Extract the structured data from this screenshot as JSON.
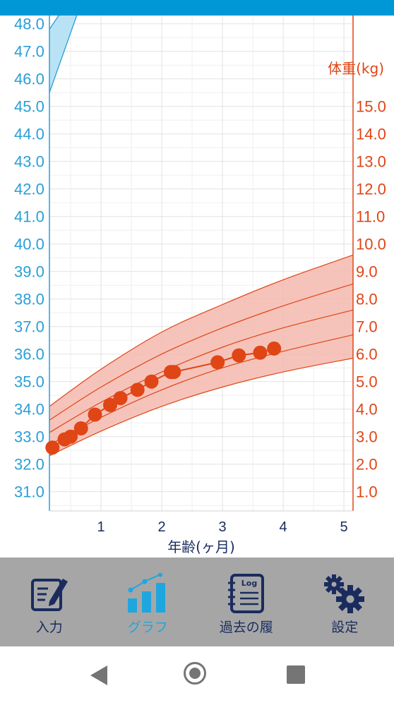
{
  "chart_data": {
    "type": "line",
    "left_axis": {
      "ticks": [
        "31.0",
        "32.0",
        "33.0",
        "34.0",
        "35.0",
        "36.0",
        "37.0",
        "38.0",
        "39.0",
        "40.0",
        "41.0",
        "42.0",
        "43.0",
        "44.0",
        "45.0",
        "46.0",
        "47.0",
        "48.0"
      ],
      "range": [
        30.3,
        48.3
      ],
      "color": "#2a9fd6"
    },
    "right_axis": {
      "label": "体重(kg)",
      "ticks": [
        "1.0",
        "2.0",
        "3.0",
        "4.0",
        "5.0",
        "6.0",
        "7.0",
        "8.0",
        "9.0",
        "10.0",
        "11.0",
        "12.0",
        "13.0",
        "14.0",
        "15.0"
      ],
      "range": [
        0.3,
        18.3
      ],
      "color": "#e04515"
    },
    "x_axis": {
      "label": "年齢(ヶ月)",
      "ticks": [
        "1",
        "2",
        "3",
        "4",
        "5"
      ],
      "range": [
        0.15,
        5.15
      ],
      "color": "#1a2c5e"
    },
    "grid": true,
    "weight_percentile_curves": [
      {
        "x": [
          0.15,
          1,
          2,
          3,
          4,
          5.15
        ],
        "y": [
          2.3,
          3.2,
          4.1,
          4.8,
          5.35,
          5.85
        ]
      },
      {
        "x": [
          0.15,
          1,
          2,
          3,
          4,
          5.15
        ],
        "y": [
          2.7,
          3.7,
          4.7,
          5.5,
          6.1,
          6.7
        ]
      },
      {
        "x": [
          0.15,
          1,
          2,
          3,
          4,
          5.15
        ],
        "y": [
          3.15,
          4.25,
          5.35,
          6.25,
          6.95,
          7.6
        ]
      },
      {
        "x": [
          0.15,
          1,
          2,
          3,
          4,
          5.15
        ],
        "y": [
          3.6,
          4.8,
          6.0,
          6.95,
          7.75,
          8.55
        ]
      },
      {
        "x": [
          0.15,
          1,
          2,
          3,
          4,
          5.15
        ],
        "y": [
          4.1,
          5.45,
          6.8,
          7.8,
          8.7,
          9.6
        ]
      }
    ],
    "head_band_top_left": {
      "lower": {
        "x": [
          0.15,
          0.6
        ],
        "y": [
          45.5,
          48.3
        ]
      },
      "upper": {
        "x": [
          0.15,
          0.67
        ],
        "y": [
          47.8,
          49.5
        ]
      }
    },
    "weight_measurements": {
      "x": [
        0.2,
        0.4,
        0.5,
        0.67,
        0.9,
        1.15,
        1.32,
        1.6,
        1.83,
        2.15,
        2.2,
        2.92,
        3.27,
        3.62,
        3.85
      ],
      "y": [
        2.6,
        2.9,
        3.0,
        3.3,
        3.8,
        4.15,
        4.4,
        4.7,
        5.0,
        5.35,
        5.35,
        5.7,
        5.95,
        6.05,
        6.2
      ]
    },
    "colors": {
      "weight_band_fill": "#f4b8ae",
      "weight_line": "#e04515",
      "head_band_fill": "#b9e3f4",
      "head_line": "#2a9fd6",
      "grid": "#e2e2e2"
    }
  },
  "tabs": [
    {
      "label": "入力",
      "icon": "input-form-icon",
      "active": false
    },
    {
      "label": "グラフ",
      "icon": "bar-chart-icon",
      "active": true
    },
    {
      "label": "過去の履",
      "icon": "log-book-icon",
      "active": false,
      "icon_text": "Log"
    },
    {
      "label": "設定",
      "icon": "gears-icon",
      "active": false
    }
  ]
}
